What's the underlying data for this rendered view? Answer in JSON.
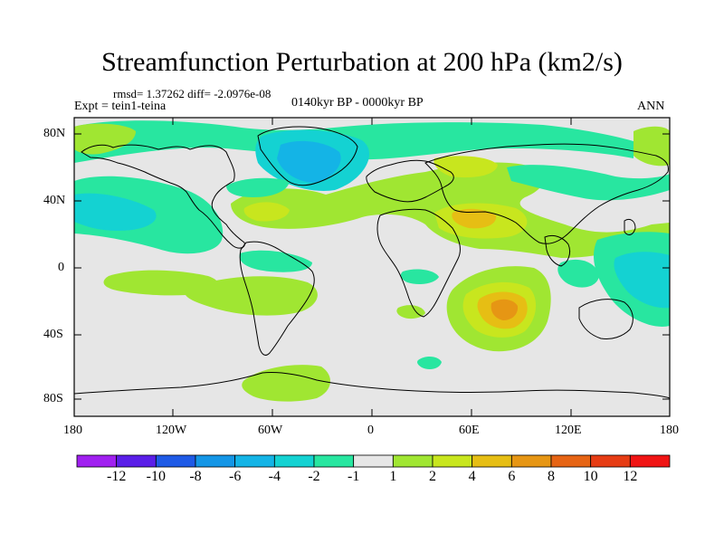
{
  "title": "Streamfunction Perturbation at 200 hPa (km2/s)",
  "stats": "rmsd= 1.37262 diff= -2.0976e-08",
  "experiment": "Expt = tein1-teina",
  "period": "0140kyr BP - 0000kyr BP",
  "season": "ANN",
  "y_ticks": [
    "80N",
    "40N",
    "0",
    "40S",
    "80S"
  ],
  "x_ticks": [
    "180",
    "120W",
    "60W",
    "0",
    "60E",
    "120E",
    "180"
  ],
  "colorbar": {
    "labels": [
      "-12",
      "-10",
      "-8",
      "-6",
      "-4",
      "-2",
      "-1",
      "1",
      "2",
      "4",
      "6",
      "8",
      "10",
      "12"
    ],
    "colors": [
      "#a020f0",
      "#5a1ee8",
      "#1e5ae6",
      "#1496e6",
      "#14b4e6",
      "#14d2d2",
      "#28e6a0",
      "#e6e6e6",
      "#a0e632",
      "#c8e61e",
      "#e6be14",
      "#e69614",
      "#e66414",
      "#e63c14",
      "#f01414"
    ]
  },
  "colors": {
    "neutral": "#e6e6e6",
    "pos1": "#a0e632",
    "pos2": "#c8e61e",
    "pos3": "#e6be14",
    "pos4": "#e69614",
    "neg1": "#28e6a0",
    "neg2": "#14d2d2",
    "neg3": "#14b4e6"
  }
}
